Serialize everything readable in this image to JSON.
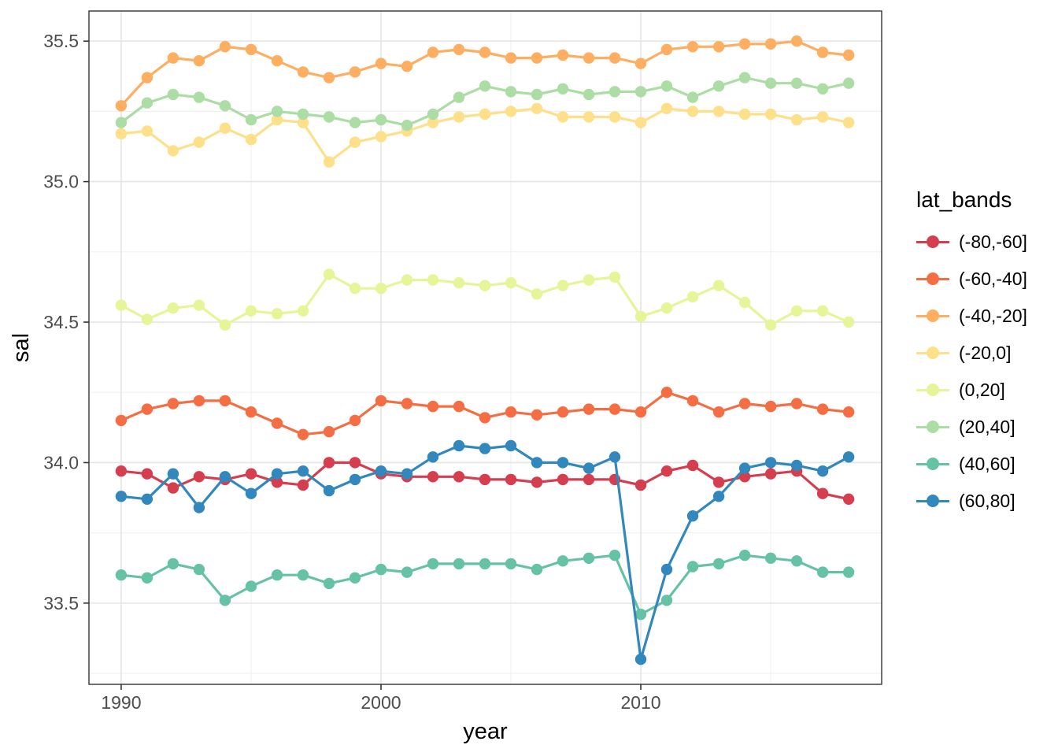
{
  "chart_data": {
    "type": "line",
    "title": "",
    "xlabel": "year",
    "ylabel": "sal",
    "legend_title": "lat_bands",
    "legend_position": "right",
    "grid": true,
    "xlim": [
      1988.76,
      2019.27
    ],
    "ylim": [
      33.211,
      35.607
    ],
    "x_ticks": [
      {
        "value": 1990,
        "label": "1990"
      },
      {
        "value": 2000,
        "label": "2000"
      },
      {
        "value": 2010,
        "label": "2010"
      }
    ],
    "x_minor": [
      1995,
      2005,
      2015
    ],
    "y_ticks": [
      {
        "value": 33.5,
        "label": "33.5"
      },
      {
        "value": 34.0,
        "label": "34.0"
      },
      {
        "value": 34.5,
        "label": "34.5"
      },
      {
        "value": 35.0,
        "label": "35.0"
      },
      {
        "value": 35.5,
        "label": "35.5"
      }
    ],
    "y_minor": [
      33.25,
      33.75,
      34.25,
      34.75,
      35.25
    ],
    "x": [
      1990,
      1991,
      1992,
      1993,
      1994,
      1995,
      1996,
      1997,
      1998,
      1999,
      2000,
      2001,
      2002,
      2003,
      2004,
      2005,
      2006,
      2007,
      2008,
      2009,
      2010,
      2011,
      2012,
      2013,
      2014,
      2015,
      2016,
      2017,
      2018
    ],
    "series": [
      {
        "name": "(-80,-60]",
        "color": "#d53e4f",
        "values": [
          33.97,
          33.96,
          33.91,
          33.95,
          33.94,
          33.96,
          33.93,
          33.92,
          34.0,
          34.0,
          33.96,
          33.95,
          33.95,
          33.95,
          33.94,
          33.94,
          33.93,
          33.94,
          33.94,
          33.94,
          33.92,
          33.97,
          33.99,
          33.93,
          33.95,
          33.96,
          33.97,
          33.89,
          33.87
        ]
      },
      {
        "name": "(-60,-40]",
        "color": "#f46d43",
        "values": [
          34.15,
          34.19,
          34.21,
          34.22,
          34.22,
          34.18,
          34.14,
          34.1,
          34.11,
          34.15,
          34.22,
          34.21,
          34.2,
          34.2,
          34.16,
          34.18,
          34.17,
          34.18,
          34.19,
          34.19,
          34.18,
          34.25,
          34.22,
          34.18,
          34.21,
          34.2,
          34.21,
          34.19,
          34.18
        ]
      },
      {
        "name": "(-40,-20]",
        "color": "#fdae61",
        "values": [
          35.27,
          35.37,
          35.44,
          35.43,
          35.48,
          35.47,
          35.43,
          35.39,
          35.37,
          35.39,
          35.42,
          35.41,
          35.46,
          35.47,
          35.46,
          35.44,
          35.44,
          35.45,
          35.44,
          35.44,
          35.42,
          35.47,
          35.48,
          35.48,
          35.49,
          35.49,
          35.5,
          35.46,
          35.45
        ]
      },
      {
        "name": "(-20,0]",
        "color": "#fee08b",
        "values": [
          35.17,
          35.18,
          35.11,
          35.14,
          35.19,
          35.15,
          35.22,
          35.21,
          35.07,
          35.14,
          35.16,
          35.18,
          35.21,
          35.23,
          35.24,
          35.25,
          35.26,
          35.23,
          35.23,
          35.23,
          35.21,
          35.26,
          35.25,
          35.25,
          35.24,
          35.24,
          35.22,
          35.23,
          35.21
        ]
      },
      {
        "name": "(0,20]",
        "color": "#e6f598",
        "values": [
          34.56,
          34.51,
          34.55,
          34.56,
          34.49,
          34.54,
          34.53,
          34.54,
          34.67,
          34.62,
          34.62,
          34.65,
          34.65,
          34.64,
          34.63,
          34.64,
          34.6,
          34.63,
          34.65,
          34.66,
          34.52,
          34.55,
          34.59,
          34.63,
          34.57,
          34.49,
          34.54,
          34.54,
          34.5
        ]
      },
      {
        "name": "(20,40]",
        "color": "#abdda4",
        "values": [
          35.21,
          35.28,
          35.31,
          35.3,
          35.27,
          35.22,
          35.25,
          35.24,
          35.23,
          35.21,
          35.22,
          35.2,
          35.24,
          35.3,
          35.34,
          35.32,
          35.31,
          35.33,
          35.31,
          35.32,
          35.32,
          35.34,
          35.3,
          35.34,
          35.37,
          35.35,
          35.35,
          35.33,
          35.35
        ]
      },
      {
        "name": "(40,60]",
        "color": "#66c2a5",
        "values": [
          33.6,
          33.59,
          33.64,
          33.62,
          33.51,
          33.56,
          33.6,
          33.6,
          33.57,
          33.59,
          33.62,
          33.61,
          33.64,
          33.64,
          33.64,
          33.64,
          33.62,
          33.65,
          33.66,
          33.67,
          33.46,
          33.51,
          33.63,
          33.64,
          33.67,
          33.66,
          33.65,
          33.61,
          33.61
        ]
      },
      {
        "name": "(60,80]",
        "color": "#3288bd",
        "values": [
          33.88,
          33.87,
          33.96,
          33.84,
          33.95,
          33.89,
          33.96,
          33.97,
          33.9,
          33.94,
          33.97,
          33.96,
          34.02,
          34.06,
          34.05,
          34.06,
          34.0,
          34.0,
          33.98,
          34.02,
          33.3,
          33.62,
          33.81,
          33.88,
          33.98,
          34.0,
          33.99,
          33.97,
          34.02
        ]
      }
    ],
    "style": {
      "background": "#ffffff",
      "panel_background": "#ffffff",
      "panel_border": "#333333",
      "grid_major": "#e5e5e5",
      "grid_minor": "#f0f0f0",
      "tick_mark": "#333333",
      "tick_text": "#4d4d4d",
      "axis_title": "#000000"
    }
  }
}
